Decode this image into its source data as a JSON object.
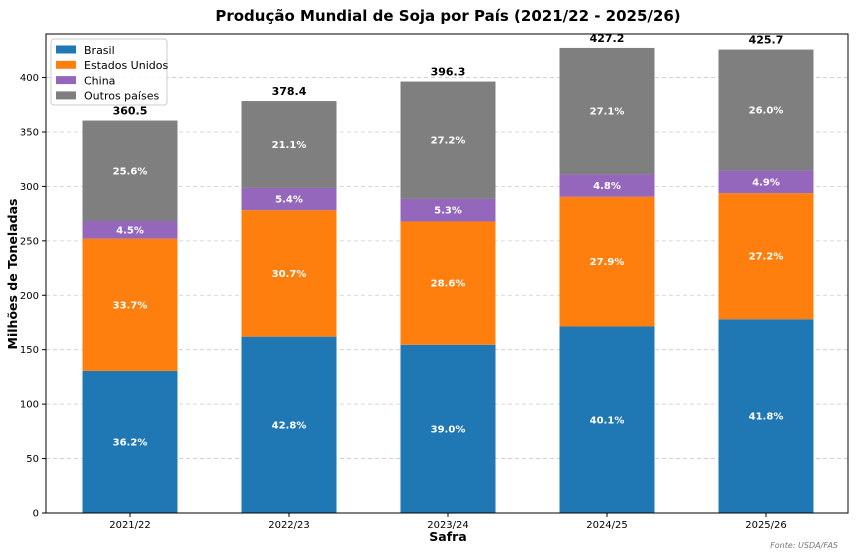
{
  "chart_data": {
    "type": "bar",
    "stacked": true,
    "title": "Produção Mundial de Soja por País (2021/22 - 2025/26)",
    "xlabel": "Safra",
    "ylabel": "Milhões de Toneladas",
    "categories": [
      "2021/22",
      "2022/23",
      "2023/24",
      "2024/25",
      "2025/26"
    ],
    "ylim": [
      0,
      440
    ],
    "yticks": [
      0,
      50,
      100,
      150,
      200,
      250,
      300,
      350,
      400
    ],
    "grid": "horizontal dashed",
    "legend_position": "top-left",
    "series": [
      {
        "name": "Brasil",
        "color": "#1f77b4",
        "values": [
          130.5,
          162.0,
          154.5,
          171.3,
          178.0
        ],
        "percent_labels": [
          "36.2%",
          "42.8%",
          "39.0%",
          "40.1%",
          "41.8%"
        ]
      },
      {
        "name": "Estados Unidos",
        "color": "#ff7f0e",
        "values": [
          121.5,
          116.2,
          113.3,
          119.2,
          115.8
        ],
        "percent_labels": [
          "33.7%",
          "30.7%",
          "28.6%",
          "27.9%",
          "27.2%"
        ]
      },
      {
        "name": "China",
        "color": "#9467bd",
        "values": [
          16.2,
          20.4,
          21.0,
          20.5,
          20.9
        ],
        "percent_labels": [
          "4.5%",
          "5.4%",
          "5.3%",
          "4.8%",
          "4.9%"
        ]
      },
      {
        "name": "Outros países",
        "color": "#7f7f7f",
        "values": [
          92.3,
          79.8,
          107.5,
          116.2,
          111.0
        ],
        "percent_labels": [
          "25.6%",
          "21.1%",
          "27.2%",
          "27.1%",
          "26.0%"
        ]
      }
    ],
    "totals": [
      "360.5",
      "378.4",
      "396.3",
      "427.2",
      "425.7"
    ],
    "source": "Fonte: USDA/FAS"
  }
}
